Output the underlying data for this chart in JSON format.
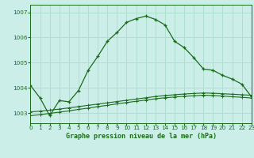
{
  "title": "Graphe pression niveau de la mer (hPa)",
  "background_color": "#cceee8",
  "grid_color": "#aaddcc",
  "line_color": "#1a6b1a",
  "xmin": 0,
  "xmax": 23,
  "ymin": 1002.6,
  "ymax": 1007.3,
  "yticks": [
    1003,
    1004,
    1005,
    1006,
    1007
  ],
  "xticks": [
    0,
    1,
    2,
    3,
    4,
    5,
    6,
    7,
    8,
    9,
    10,
    11,
    12,
    13,
    14,
    15,
    16,
    17,
    18,
    19,
    20,
    21,
    22,
    23
  ],
  "line1_x": [
    0,
    1,
    2,
    3,
    4,
    5,
    6,
    7,
    8,
    9,
    10,
    11,
    12,
    13,
    14,
    15,
    16,
    17,
    18,
    19,
    20,
    21,
    22,
    23
  ],
  "line1_y": [
    1004.1,
    1003.6,
    1002.9,
    1003.5,
    1003.45,
    1003.9,
    1004.7,
    1005.25,
    1005.85,
    1006.2,
    1006.6,
    1006.75,
    1006.85,
    1006.72,
    1006.5,
    1005.85,
    1005.6,
    1005.2,
    1004.75,
    1004.7,
    1004.5,
    1004.35,
    1004.15,
    1003.65
  ],
  "line2_x": [
    0,
    1,
    2,
    3,
    4,
    5,
    6,
    7,
    8,
    9,
    10,
    11,
    12,
    13,
    14,
    15,
    16,
    17,
    18,
    19,
    20,
    21,
    22,
    23
  ],
  "line2_y": [
    1003.05,
    1003.08,
    1003.12,
    1003.16,
    1003.21,
    1003.26,
    1003.31,
    1003.36,
    1003.41,
    1003.46,
    1003.51,
    1003.56,
    1003.61,
    1003.66,
    1003.7,
    1003.73,
    1003.76,
    1003.78,
    1003.8,
    1003.79,
    1003.77,
    1003.75,
    1003.73,
    1003.71
  ],
  "line3_x": [
    0,
    1,
    2,
    3,
    4,
    5,
    6,
    7,
    8,
    9,
    10,
    11,
    12,
    13,
    14,
    15,
    16,
    17,
    18,
    19,
    20,
    21,
    22,
    23
  ],
  "line3_y": [
    1002.9,
    1002.94,
    1002.99,
    1003.04,
    1003.09,
    1003.15,
    1003.2,
    1003.26,
    1003.31,
    1003.37,
    1003.42,
    1003.47,
    1003.52,
    1003.57,
    1003.61,
    1003.64,
    1003.67,
    1003.69,
    1003.71,
    1003.7,
    1003.68,
    1003.65,
    1003.63,
    1003.6
  ]
}
